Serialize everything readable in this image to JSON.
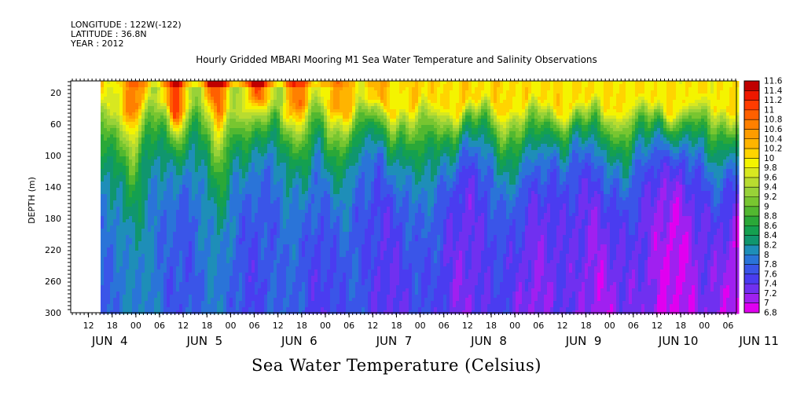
{
  "header": {
    "longitude": "LONGITUDE : 122W(-122)",
    "latitude": "LATITUDE : 36.8N",
    "year": "YEAR : 2012"
  },
  "chart_data": {
    "type": "heatmap",
    "title": "Hourly Gridded MBARI Mooring M1 Sea Water Temperature and Salinity Observations",
    "ylabel": "DEPTH (m)",
    "colorbar_title": "Sea Water Temperature (Celsius)",
    "ylim": [
      300,
      5
    ],
    "y_ticks": [
      20,
      60,
      100,
      140,
      180,
      220,
      260,
      300
    ],
    "x_hour_ticks": [
      "12",
      "18",
      "00",
      "06",
      "12",
      "18",
      "00",
      "06",
      "12",
      "18",
      "00",
      "06",
      "12",
      "18",
      "00",
      "06",
      "12",
      "18",
      "00",
      "06",
      "12",
      "18",
      "00",
      "06",
      "12",
      "18",
      "00",
      "06"
    ],
    "x_date_labels": [
      "JUN  4",
      "JUN  5",
      "JUN  6",
      "JUN  7",
      "JUN  8",
      "JUN  9",
      "JUN 10",
      "JUN 11"
    ],
    "levels": [
      6.8,
      7,
      7.2,
      7.4,
      7.6,
      7.8,
      8,
      8.2,
      8.4,
      8.6,
      8.8,
      9,
      9.2,
      9.4,
      9.6,
      9.8,
      10,
      10.2,
      10.4,
      10.6,
      10.8,
      11,
      11.2,
      11.4,
      11.6
    ],
    "colors": [
      "#e000f0",
      "#a020f0",
      "#7030f0",
      "#4a3cf0",
      "#3a55e8",
      "#2a74d8",
      "#1e8eb8",
      "#10966e",
      "#14a050",
      "#2aa838",
      "#52b830",
      "#78c630",
      "#98d238",
      "#b8dc30",
      "#d8e820",
      "#f4f400",
      "#ffd400",
      "#ffb400",
      "#ff9c00",
      "#ff8000",
      "#ff6000",
      "#ff3c00",
      "#ee1800",
      "#c00000"
    ],
    "series_description": {
      "x_range_days": [
        "Jun 4 09:00",
        "Jun 11 12:00"
      ],
      "data_start": "Jun 4 18:00",
      "surface_max": 11.4,
      "bottom_min": 6.9
    }
  }
}
